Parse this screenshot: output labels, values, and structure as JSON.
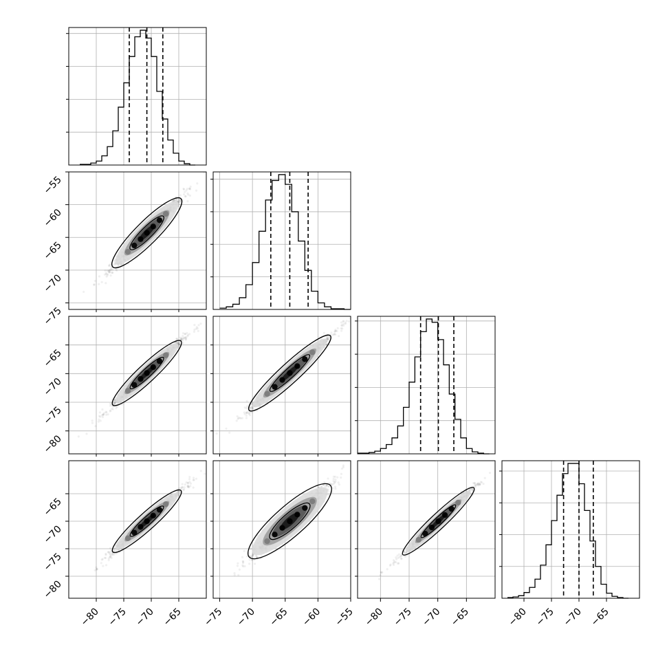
{
  "chart_data": {
    "type": "corner",
    "n_params": 4,
    "grid": true,
    "params": [
      {
        "range": [
          -85,
          -60
        ],
        "ticks": [
          -80,
          -75,
          -70,
          -65
        ],
        "tick_labels": [
          "−80",
          "−75",
          "−70",
          "−65"
        ]
      },
      {
        "range": [
          -76,
          -55
        ],
        "ticks": [
          -75,
          -70,
          -65,
          -60,
          -55
        ],
        "tick_labels": [
          "−75",
          "−70",
          "−65",
          "−60",
          "−55"
        ]
      },
      {
        "range": [
          -84,
          -60
        ],
        "ticks": [
          -80,
          -75,
          -70,
          -65
        ],
        "tick_labels": [
          "−80",
          "−75",
          "−70",
          "−65"
        ]
      },
      {
        "range": [
          -84,
          -59
        ],
        "ticks": [
          -80,
          -75,
          -70,
          -65
        ],
        "tick_labels": [
          "−80",
          "−75",
          "−70",
          "−65"
        ]
      }
    ],
    "marginals": [
      {
        "quantiles": [
          -74.0,
          -70.8,
          -67.9
        ],
        "bin_edges": [
          -83,
          -82,
          -81,
          -80,
          -79,
          -78,
          -77,
          -76,
          -75,
          -74,
          -73,
          -72,
          -71,
          -70,
          -69,
          -68,
          -67,
          -66,
          -65,
          -64,
          -63,
          -62
        ],
        "counts": [
          1,
          1,
          3,
          6,
          14,
          28,
          52,
          88,
          125,
          165,
          195,
          205,
          193,
          165,
          112,
          70,
          38,
          18,
          6,
          2,
          0
        ]
      },
      {
        "quantiles": [
          -67.2,
          -64.3,
          -61.5
        ],
        "bin_edges": [
          -75,
          -74,
          -73,
          -72,
          -71,
          -70,
          -69,
          -68,
          -67,
          -66,
          -65,
          -64,
          -63,
          -62,
          -61,
          -60,
          -59,
          -58,
          -57,
          -56,
          -55
        ],
        "counts": [
          2,
          4,
          8,
          18,
          38,
          72,
          120,
          168,
          198,
          207,
          192,
          150,
          105,
          60,
          28,
          10,
          4,
          1,
          1,
          0
        ]
      },
      {
        "quantiles": [
          -73.0,
          -69.9,
          -67.2
        ],
        "bin_edges": [
          -84,
          -83,
          -82,
          -81,
          -80,
          -79,
          -78,
          -77,
          -76,
          -75,
          -74,
          -73,
          -72,
          -71,
          -70,
          -69,
          -68,
          -67,
          -66,
          -65,
          -64,
          -63,
          -62,
          -61
        ],
        "counts": [
          1,
          1,
          2,
          4,
          8,
          14,
          24,
          42,
          70,
          108,
          146,
          184,
          203,
          198,
          172,
          134,
          90,
          52,
          24,
          8,
          3,
          1,
          0
        ]
      },
      {
        "quantiles": [
          -72.8,
          -70.0,
          -67.4
        ],
        "bin_edges": [
          -83,
          -82,
          -81,
          -80,
          -79,
          -78,
          -77,
          -76,
          -75,
          -74,
          -73,
          -72,
          -71,
          -70,
          -69,
          -68,
          -67,
          -66,
          -65,
          -64,
          -63,
          -62,
          -61
        ],
        "counts": [
          1,
          2,
          4,
          9,
          17,
          30,
          52,
          84,
          122,
          162,
          196,
          212,
          212,
          180,
          138,
          90,
          50,
          22,
          8,
          3,
          1,
          0
        ]
      }
    ],
    "pairs": [
      {
        "row": 1,
        "col": 0,
        "center": [
          -70.8,
          -64.3
        ],
        "slope": 0.84,
        "spread": 1.0,
        "max": [
          -61,
          -56
        ],
        "min": [
          -82,
          -76
        ]
      },
      {
        "row": 2,
        "col": 0,
        "center": [
          -70.8,
          -69.9
        ],
        "slope": 0.9,
        "spread": 0.9,
        "max": [
          -61,
          -61
        ],
        "min": [
          -83,
          -83
        ]
      },
      {
        "row": 2,
        "col": 1,
        "center": [
          -64.3,
          -69.9
        ],
        "slope": 1.05,
        "spread": 1.0,
        "max": [
          -55,
          -61
        ],
        "min": [
          -76,
          -83
        ]
      },
      {
        "row": 3,
        "col": 0,
        "center": [
          -70.8,
          -70.0
        ],
        "slope": 0.9,
        "spread": 0.9,
        "max": [
          -61,
          -60
        ],
        "min": [
          -83,
          -83
        ]
      },
      {
        "row": 3,
        "col": 1,
        "center": [
          -64.3,
          -70.0
        ],
        "slope": 1.05,
        "spread": 1.6,
        "max": [
          -55,
          -60
        ],
        "min": [
          -76,
          -83
        ]
      },
      {
        "row": 3,
        "col": 2,
        "center": [
          -69.9,
          -70.0
        ],
        "slope": 0.98,
        "spread": 0.8,
        "max": [
          -61,
          -60
        ],
        "min": [
          -83,
          -83
        ]
      }
    ]
  }
}
